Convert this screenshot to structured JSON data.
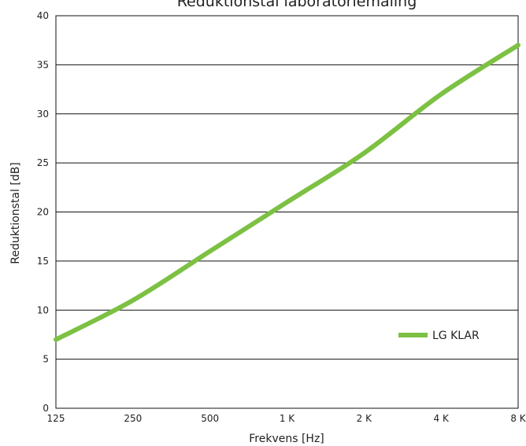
{
  "chart_data": {
    "type": "line",
    "title": "Reduktionstal laboratoriemåling",
    "xlabel": "Frekvens [Hz]",
    "ylabel": "Reduktionstal [dB]",
    "categories": [
      "125",
      "250",
      "500",
      "1 K",
      "2 K",
      "4 K",
      "8 K"
    ],
    "x_scale": "log2-octaves",
    "ylim": [
      0,
      40
    ],
    "yticks": [
      0,
      5,
      10,
      15,
      20,
      25,
      30,
      35,
      40
    ],
    "grid": "horizontal",
    "legend_position": "right",
    "series": [
      {
        "name": "LG KLAR",
        "color": "#7cc143",
        "x": [
          "125",
          "250",
          "500",
          "1 K",
          "2 K",
          "4 K",
          "8 K"
        ],
        "values": [
          7,
          11,
          16,
          21,
          26,
          32,
          37
        ]
      }
    ]
  }
}
